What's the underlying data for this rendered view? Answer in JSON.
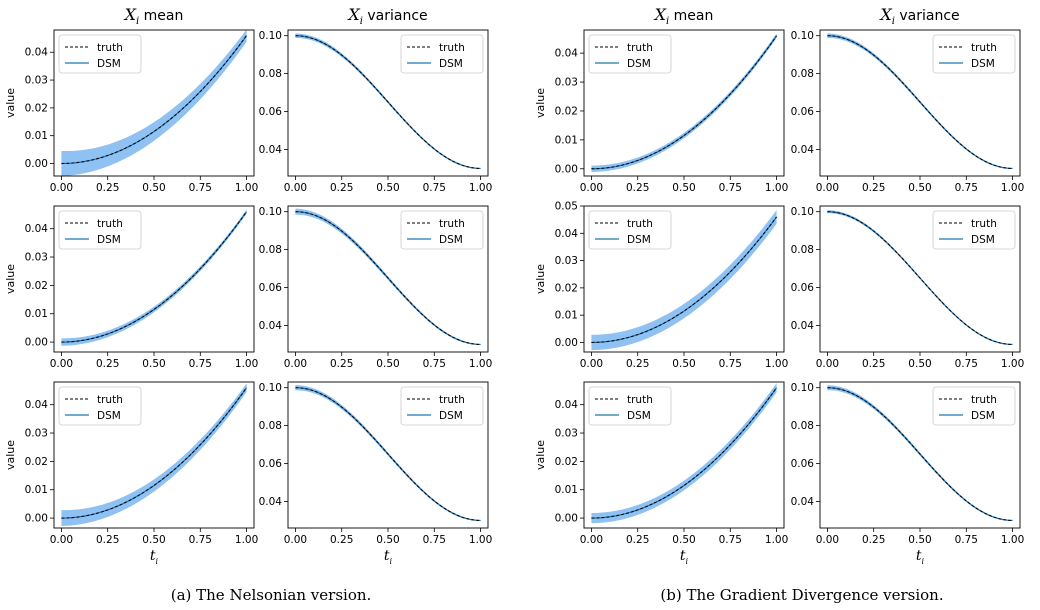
{
  "colors": {
    "truth": "#000000",
    "dsm": "#1f77b4",
    "band": "#8fc1f2"
  },
  "column_titles": [
    {
      "sym": "X",
      "sub": "i",
      "rest": " mean"
    },
    {
      "sym": "X",
      "sub": "i",
      "rest": " variance"
    },
    {
      "sym": "X",
      "sub": "i",
      "rest": " mean"
    },
    {
      "sym": "X",
      "sub": "i",
      "rest": " variance"
    }
  ],
  "xlabel": {
    "sym": "t",
    "sub": "i"
  },
  "ylabel": "value",
  "captions": [
    "(a)  The Nelsonian version.",
    "(b)  The Gradient Divergence version."
  ],
  "chart_data": {
    "type": "line",
    "x_ticks": [
      "0.00",
      "0.25",
      "0.50",
      "0.75",
      "1.00"
    ],
    "xlim": [
      -0.04,
      1.04
    ],
    "legend": {
      "placement": "upper-left / upper-right",
      "entries": [
        "truth",
        "DSM"
      ]
    },
    "mean_truth": {
      "x": [
        0,
        0.25,
        0.5,
        0.75,
        1.0
      ],
      "y": [
        0.0,
        0.0044,
        0.0155,
        0.0305,
        0.046
      ]
    },
    "variance_truth": {
      "x": [
        0,
        0.25,
        0.5,
        0.75,
        1.0
      ],
      "y": [
        0.1,
        0.094,
        0.077,
        0.053,
        0.03
      ]
    },
    "panels": [
      {
        "figure": "a",
        "row": 0,
        "stat": "mean",
        "yticks": [
          "0.00",
          "0.01",
          "0.02",
          "0.03",
          "0.04"
        ],
        "ylim": [
          -0.0045,
          0.048
        ],
        "band_width": [
          0.0045,
          0.0022
        ],
        "legend_pos": "upper-left"
      },
      {
        "figure": "a",
        "row": 0,
        "stat": "variance",
        "yticks": [
          "0.04",
          "0.06",
          "0.08",
          "0.10"
        ],
        "ylim": [
          0.026,
          0.103
        ],
        "band_width": [
          0.0012,
          0.0003
        ],
        "legend_pos": "upper-right"
      },
      {
        "figure": "a",
        "row": 1,
        "stat": "mean",
        "yticks": [
          "0.00",
          "0.01",
          "0.02",
          "0.03",
          "0.04"
        ],
        "ylim": [
          -0.0035,
          0.048
        ],
        "band_width": [
          0.0013,
          0.0007
        ],
        "legend_pos": "upper-left"
      },
      {
        "figure": "a",
        "row": 1,
        "stat": "variance",
        "yticks": [
          "0.04",
          "0.06",
          "0.08",
          "0.10"
        ],
        "ylim": [
          0.026,
          0.103
        ],
        "band_width": [
          0.0016,
          0.0003
        ],
        "legend_pos": "upper-right"
      },
      {
        "figure": "a",
        "row": 2,
        "stat": "mean",
        "yticks": [
          "0.00",
          "0.01",
          "0.02",
          "0.03",
          "0.04"
        ],
        "ylim": [
          -0.0035,
          0.048
        ],
        "band_width": [
          0.0028,
          0.0015
        ],
        "legend_pos": "upper-left"
      },
      {
        "figure": "a",
        "row": 2,
        "stat": "variance",
        "yticks": [
          "0.04",
          "0.06",
          "0.08",
          "0.10"
        ],
        "ylim": [
          0.026,
          0.103
        ],
        "band_width": [
          0.0014,
          0.0003
        ],
        "legend_pos": "upper-right"
      },
      {
        "figure": "b",
        "row": 0,
        "stat": "mean",
        "yticks": [
          "0.00",
          "0.01",
          "0.02",
          "0.03",
          "0.04"
        ],
        "ylim": [
          -0.0025,
          0.048
        ],
        "band_width": [
          0.0011,
          0.0008
        ],
        "legend_pos": "upper-left"
      },
      {
        "figure": "b",
        "row": 0,
        "stat": "variance",
        "yticks": [
          "0.04",
          "0.06",
          "0.08",
          "0.10"
        ],
        "ylim": [
          0.026,
          0.103
        ],
        "band_width": [
          0.0012,
          0.0003
        ],
        "legend_pos": "upper-right"
      },
      {
        "figure": "b",
        "row": 1,
        "stat": "mean",
        "yticks": [
          "0.00",
          "0.01",
          "0.02",
          "0.03",
          "0.04",
          "0.05"
        ],
        "ylim": [
          -0.0035,
          0.05
        ],
        "band_width": [
          0.0028,
          0.0025
        ],
        "legend_pos": "upper-left"
      },
      {
        "figure": "b",
        "row": 1,
        "stat": "variance",
        "yticks": [
          "0.04",
          "0.06",
          "0.08",
          "0.10"
        ],
        "ylim": [
          0.026,
          0.103
        ],
        "band_width": [
          0.0008,
          0.0003
        ],
        "legend_pos": "upper-right"
      },
      {
        "figure": "b",
        "row": 2,
        "stat": "mean",
        "yticks": [
          "0.00",
          "0.01",
          "0.02",
          "0.03",
          "0.04"
        ],
        "ylim": [
          -0.0035,
          0.048
        ],
        "band_width": [
          0.0018,
          0.0016
        ],
        "legend_pos": "upper-left"
      },
      {
        "figure": "b",
        "row": 2,
        "stat": "variance",
        "yticks": [
          "0.04",
          "0.06",
          "0.08",
          "0.10"
        ],
        "ylim": [
          0.026,
          0.103
        ],
        "band_width": [
          0.0013,
          0.0003
        ],
        "legend_pos": "upper-right"
      }
    ]
  }
}
